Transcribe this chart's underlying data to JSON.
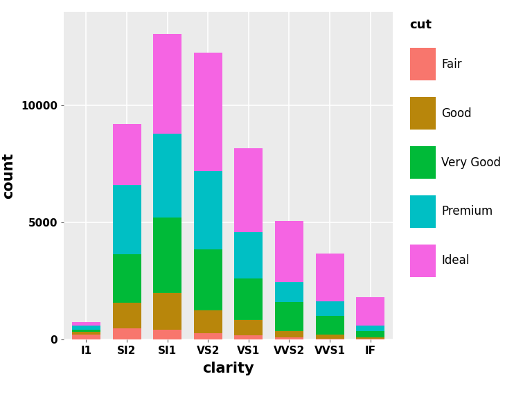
{
  "categories": [
    "I1",
    "SI2",
    "SI1",
    "VS2",
    "VS1",
    "VVS2",
    "VVS1",
    "IF"
  ],
  "cuts": [
    "Fair",
    "Good",
    "Very Good",
    "Premium",
    "Ideal"
  ],
  "colors": [
    "#F8766D",
    "#B8860B",
    "#00BA38",
    "#00BFC4",
    "#F564E3"
  ],
  "data": {
    "Fair": [
      210,
      466,
      408,
      261,
      170,
      69,
      17,
      9
    ],
    "Good": [
      96,
      1081,
      1560,
      978,
      648,
      286,
      186,
      71
    ],
    "Very Good": [
      84,
      2100,
      3240,
      2591,
      1775,
      1235,
      789,
      268
    ],
    "Premium": [
      205,
      2949,
      3575,
      3357,
      1989,
      870,
      616,
      230
    ],
    "Ideal": [
      146,
      2598,
      4282,
      5071,
      3589,
      2606,
      2047,
      1212
    ]
  },
  "xlabel": "clarity",
  "ylabel": "count",
  "legend_title": "cut",
  "ylim": [
    0,
    14000
  ],
  "yticks": [
    0,
    5000,
    10000
  ],
  "background_color": "#EBEBEB",
  "grid_color": "#FFFFFF",
  "bar_width": 0.7,
  "axis_label_fontsize": 15,
  "tick_fontsize": 11,
  "legend_fontsize": 12,
  "legend_title_fontsize": 13
}
